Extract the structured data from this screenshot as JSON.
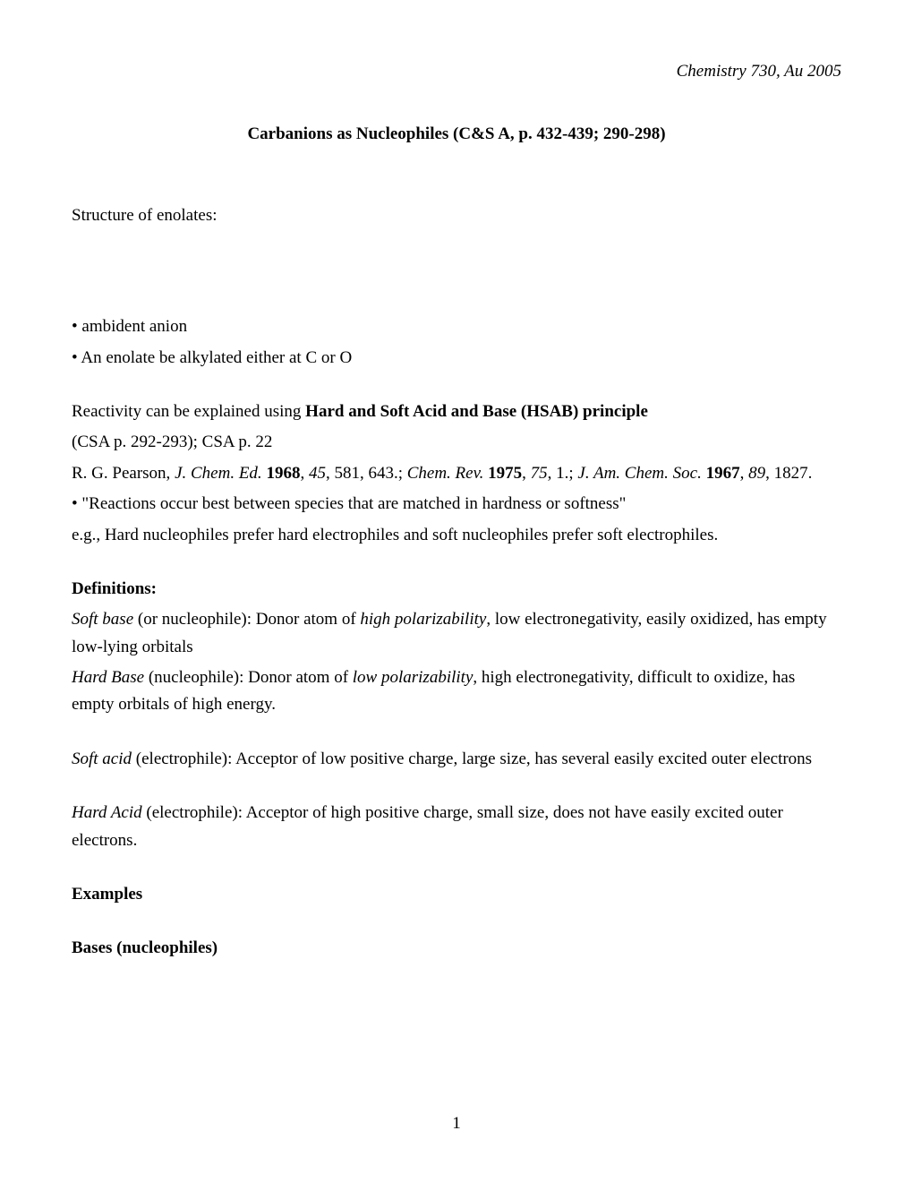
{
  "header": {
    "course": "Chemistry 730, Au 2005"
  },
  "title": "Carbanions as Nucleophiles (C&S A, p. 432-439; 290-298)",
  "structure_heading": "Structure of enolates:",
  "bullets": {
    "ambident": "• ambident anion",
    "enolate": "•  An enolate be alkylated either at C or O"
  },
  "reactivity_heading_prefix": "Reactivity can be explained using ",
  "reactivity_heading_bold": "Hard and Soft Acid and Base (HSAB) principle",
  "csa_ref": "(CSA p. 292-293); CSA p. 22",
  "pearson_prefix": "R. G. Pearson, ",
  "pearson_journal1": "J. Chem. Ed.",
  "pearson_mid1": "  ",
  "pearson_year1": "1968",
  "pearson_post1": ", ",
  "pearson_vol1": "45",
  "pearson_post1b": ", 581, 643.;  ",
  "pearson_journal2": "Chem. Rev.",
  "pearson_mid2": " ",
  "pearson_year2": "1975",
  "pearson_post2": ", ",
  "pearson_vol2": "75",
  "pearson_post2b": ", 1.; ",
  "pearson_journal3": "J. Am. Chem. Soc.",
  "pearson_mid3": " ",
  "pearson_year3": "1967",
  "pearson_post3": ", ",
  "pearson_vol3": "89",
  "pearson_post3b": ", 1827.",
  "quote_bullet": " •  \"Reactions occur best between species that are matched in hardness or softness\"",
  "hard_nucleophiles": "e.g., Hard nucleophiles prefer hard electrophiles and soft nucleophiles prefer soft electrophiles.",
  "definitions_heading": "Definitions:",
  "soft_base_label": "Soft base",
  "soft_base_mid": " (or nucleophile): Donor atom of ",
  "soft_base_italic": "high polarizability",
  "soft_base_rest": ", low electronegativity,  easily oxidized, has empty low-lying orbitals",
  "hard_base_label": "Hard Base",
  "hard_base_mid": " (nucleophile): Donor atom of ",
  "hard_base_italic": "low polarizability",
  "hard_base_rest": ", high electronegativity,  difficult to oxidize, has empty orbitals of high energy.",
  "soft_acid_label": "Soft acid",
  "soft_acid_rest": " (electrophile): Acceptor of low positive charge, large size, has several easily excited outer electrons",
  "hard_acid_label": "Hard Acid",
  "hard_acid_rest": " (electrophile): Acceptor of high positive charge, small size, does not have easily excited outer electrons.",
  "examples_heading": "Examples",
  "bases_heading": "Bases (nucleophiles)",
  "page_number": "1"
}
